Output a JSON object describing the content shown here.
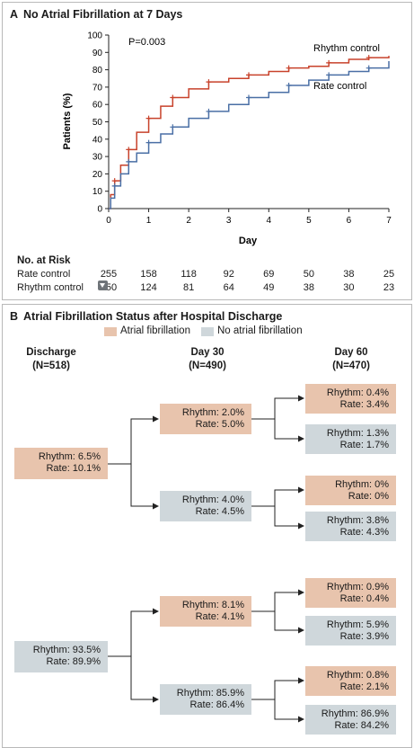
{
  "panel_a": {
    "letter": "A",
    "title": "No Atrial Fibrillation at 7 Days",
    "p_value": "P=0.003",
    "risk_title": "No. at Risk",
    "risk_rows": [
      {
        "label": "Rate control",
        "values": [
          "255",
          "158",
          "118",
          "92",
          "69",
          "50",
          "38",
          "25"
        ]
      },
      {
        "label": "Rhythm control",
        "values": [
          "250",
          "124",
          "81",
          "64",
          "49",
          "38",
          "30",
          "23"
        ]
      }
    ]
  },
  "chart_data": {
    "type": "line",
    "title": "No Atrial Fibrillation at 7 Days",
    "xlabel": "Day",
    "ylabel": "Patients (%)",
    "xlim": [
      0,
      7
    ],
    "ylim": [
      0,
      100
    ],
    "xticks": [
      "0",
      "1",
      "2",
      "3",
      "4",
      "5",
      "6",
      "7"
    ],
    "yticks": [
      "0",
      "10",
      "20",
      "30",
      "40",
      "50",
      "60",
      "70",
      "80",
      "90",
      "100"
    ],
    "series": [
      {
        "name": "Rhythm control",
        "color": "#c8422b",
        "x": [
          0,
          0.05,
          0.15,
          0.3,
          0.5,
          0.7,
          1.0,
          1.3,
          1.6,
          2.0,
          2.5,
          3.0,
          3.5,
          4.0,
          4.5,
          5.0,
          5.5,
          6.0,
          6.5,
          7.0
        ],
        "y": [
          0,
          8,
          16,
          25,
          34,
          44,
          52,
          59,
          64,
          69,
          73,
          75,
          77,
          79,
          81,
          82,
          84,
          86,
          87,
          88
        ]
      },
      {
        "name": "Rate control",
        "color": "#4a6fa5",
        "x": [
          0,
          0.05,
          0.15,
          0.3,
          0.5,
          0.7,
          1.0,
          1.3,
          1.6,
          2.0,
          2.5,
          3.0,
          3.5,
          4.0,
          4.5,
          5.0,
          5.5,
          6.0,
          6.5,
          7.0
        ],
        "y": [
          0,
          6,
          13,
          20,
          27,
          32,
          38,
          43,
          47,
          52,
          56,
          60,
          64,
          67,
          71,
          74,
          77,
          79,
          81,
          85
        ]
      }
    ]
  },
  "panel_b": {
    "letter": "B",
    "title": "Atrial Fibrillation Status after Hospital Discharge",
    "legend_af": "Atrial fibrillation",
    "legend_noaf": "No atrial fibrillation",
    "col_discharge": "Discharge",
    "col_discharge_n": "(N=518)",
    "col_day30": "Day 30",
    "col_day30_n": "(N=490)",
    "col_day60": "Day 60",
    "col_day60_n": "(N=470)",
    "discharge_af": {
      "rhythm": "Rhythm:  6.5%",
      "rate": "Rate: 10.1%"
    },
    "discharge_noaf": {
      "rhythm": "Rhythm: 93.5%",
      "rate": "Rate: 89.9%"
    },
    "d30_1": {
      "rhythm": "Rhythm: 2.0%",
      "rate": "Rate: 5.0%"
    },
    "d30_2": {
      "rhythm": "Rhythm: 4.0%",
      "rate": "Rate: 4.5%"
    },
    "d30_3": {
      "rhythm": "Rhythm: 8.1%",
      "rate": "Rate: 4.1%"
    },
    "d30_4": {
      "rhythm": "Rhythm: 85.9%",
      "rate": "Rate: 86.4%"
    },
    "d60_1": {
      "rhythm": "Rhythm: 0.4%",
      "rate": "Rate: 3.4%"
    },
    "d60_2": {
      "rhythm": "Rhythm: 1.3%",
      "rate": "Rate: 1.7%"
    },
    "d60_3": {
      "rhythm": "Rhythm: 0%",
      "rate": "Rate: 0%"
    },
    "d60_4": {
      "rhythm": "Rhythm: 3.8%",
      "rate": "Rate: 4.3%"
    },
    "d60_5": {
      "rhythm": "Rhythm: 0.9%",
      "rate": "Rate: 0.4%"
    },
    "d60_6": {
      "rhythm": "Rhythm: 5.9%",
      "rate": "Rate: 3.9%"
    },
    "d60_7": {
      "rhythm": "Rhythm: 0.8%",
      "rate": "Rate: 2.1%"
    },
    "d60_8": {
      "rhythm": "Rhythm: 86.9%",
      "rate": "Rate: 84.2%"
    },
    "colors": {
      "af": "#e8c4ad",
      "noaf": "#cfd7db"
    }
  }
}
